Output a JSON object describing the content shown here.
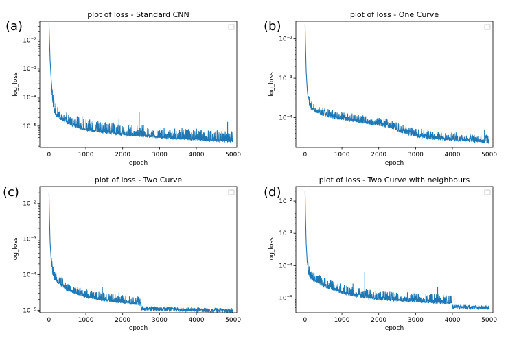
{
  "chart_data": [
    {
      "panel": "(a)",
      "type": "line",
      "title": "plot of loss - Standard CNN",
      "xlabel": "epoch",
      "ylabel": "log_loss",
      "yscale": "log",
      "xlim": [
        -250,
        5100
      ],
      "xticks": [
        0,
        1000,
        2000,
        3000,
        4000,
        5000
      ],
      "ylim": [
        1.8e-06,
        0.045
      ],
      "yticks": [
        1e-05,
        0.0001,
        0.001,
        0.01
      ],
      "ytick_labels": [
        "10⁻⁵",
        "10⁻⁴",
        "10⁻³",
        "10⁻²"
      ],
      "color": "#1f77b4",
      "series": [
        {
          "name": "loss",
          "x": [
            0,
            10,
            30,
            60,
            100,
            150,
            250,
            400,
            600,
            1000,
            1500,
            2000,
            2500,
            3000,
            3500,
            4000,
            4500,
            5000
          ],
          "y": [
            0.04,
            0.012,
            0.002,
            0.0004,
            7e-05,
            3.2e-05,
            2.2e-05,
            1.6e-05,
            1.2e-05,
            8e-06,
            6.5e-06,
            5.5e-06,
            5e-06,
            4.5e-06,
            4e-06,
            3.7e-06,
            3.4e-06,
            3.2e-06
          ],
          "noise_upper_factor": 2.2,
          "spikes": [
            [
              2450,
              3e-05
            ],
            [
              900,
              2.2e-05
            ],
            [
              1900,
              1.8e-05
            ],
            [
              4850,
              1.4e-05
            ]
          ]
        }
      ]
    },
    {
      "panel": "(b)",
      "type": "line",
      "title": "plot of loss - One Curve",
      "xlabel": "epoch",
      "ylabel": "log_loss",
      "yscale": "log",
      "xlim": [
        -250,
        5100
      ],
      "xticks": [
        0,
        1000,
        2000,
        3000,
        4000,
        5000
      ],
      "ylim": [
        1.75e-05,
        0.028
      ],
      "yticks": [
        0.0001,
        0.001,
        0.01
      ],
      "ytick_labels": [
        "10⁻⁴",
        "10⁻³",
        "10⁻²"
      ],
      "color": "#1f77b4",
      "series": [
        {
          "name": "loss",
          "x": [
            0,
            10,
            30,
            60,
            100,
            150,
            250,
            400,
            600,
            1000,
            1500,
            2000,
            2200,
            2400,
            2600,
            3000,
            3500,
            4000,
            4500,
            5000
          ],
          "y": [
            0.023,
            0.008,
            0.0015,
            0.0005,
            0.00026,
            0.00019,
            0.00016,
            0.00014,
            0.00012,
            0.0001,
            8.5e-05,
            7.2e-05,
            6.8e-05,
            5.8e-05,
            4.8e-05,
            3.8e-05,
            3.2e-05,
            3e-05,
            2.8e-05,
            2.6e-05
          ],
          "noise_upper_factor": 1.4,
          "spikes": [
            [
              4870,
              5e-05
            ],
            [
              4100,
              4.2e-05
            ],
            [
              2050,
              9e-05
            ]
          ]
        }
      ]
    },
    {
      "panel": "(c)",
      "type": "line",
      "title": "plot of loss - Two Curve",
      "xlabel": "epoch",
      "ylabel": "log_loss",
      "yscale": "log",
      "xlim": [
        -250,
        5100
      ],
      "xticks": [
        0,
        1000,
        2000,
        3000,
        4000,
        5000
      ],
      "ylim": [
        8.5e-06,
        0.03
      ],
      "yticks": [
        1e-05,
        0.0001,
        0.001,
        0.01
      ],
      "ytick_labels": [
        "10⁻⁵",
        "10⁻⁴",
        "10⁻³",
        "10⁻²"
      ],
      "color": "#1f77b4",
      "series": [
        {
          "name": "loss",
          "x": [
            0,
            10,
            30,
            60,
            100,
            150,
            300,
            500,
            1000,
            1500,
            2000,
            2490,
            2510,
            3000,
            3500,
            4000,
            4500,
            5000
          ],
          "y": [
            0.02,
            0.005,
            0.0008,
            0.00025,
            0.00012,
            8e-05,
            6e-05,
            4e-05,
            2.6e-05,
            2.1e-05,
            1.8e-05,
            1.6e-05,
            1.15e-05,
            1.12e-05,
            1.08e-05,
            1.05e-05,
            1.02e-05,
            1e-05
          ],
          "noise_upper_factor": 1.5,
          "noise_end_x": 2500,
          "spikes": [
            [
              1450,
              4.5e-05
            ],
            [
              1900,
              3.2e-05
            ]
          ]
        }
      ]
    },
    {
      "panel": "(d)",
      "type": "line",
      "title": "plot of loss - Two Curve with neighbours",
      "xlabel": "epoch",
      "ylabel": "log_loss",
      "yscale": "log",
      "xlim": [
        -250,
        5100
      ],
      "xticks": [
        0,
        1000,
        2000,
        3000,
        4000,
        5000
      ],
      "ylim": [
        3.5e-06,
        0.028
      ],
      "yticks": [
        1e-05,
        0.0001,
        0.001,
        0.01
      ],
      "ytick_labels": [
        "10⁻⁵",
        "10⁻⁴",
        "10⁻³",
        "10⁻²"
      ],
      "color": "#1f77b4",
      "series": [
        {
          "name": "loss",
          "x": [
            0,
            10,
            30,
            60,
            100,
            150,
            300,
            500,
            1000,
            1500,
            2000,
            2500,
            3000,
            3500,
            3990,
            4010,
            4500,
            5000
          ],
          "y": [
            0.02,
            0.004,
            0.0005,
            0.00012,
            6e-05,
            4.5e-05,
            3.5e-05,
            2.6e-05,
            1.6e-05,
            1.2e-05,
            1e-05,
            9.2e-06,
            8.5e-06,
            8e-06,
            7.5e-06,
            5.5e-06,
            5.3e-06,
            5.1e-06
          ],
          "noise_upper_factor": 1.7,
          "noise_end_x": 4000,
          "spikes": [
            [
              1620,
              6.2e-05
            ],
            [
              1300,
              2.8e-05
            ],
            [
              3600,
              2.2e-05
            ]
          ]
        }
      ]
    }
  ]
}
